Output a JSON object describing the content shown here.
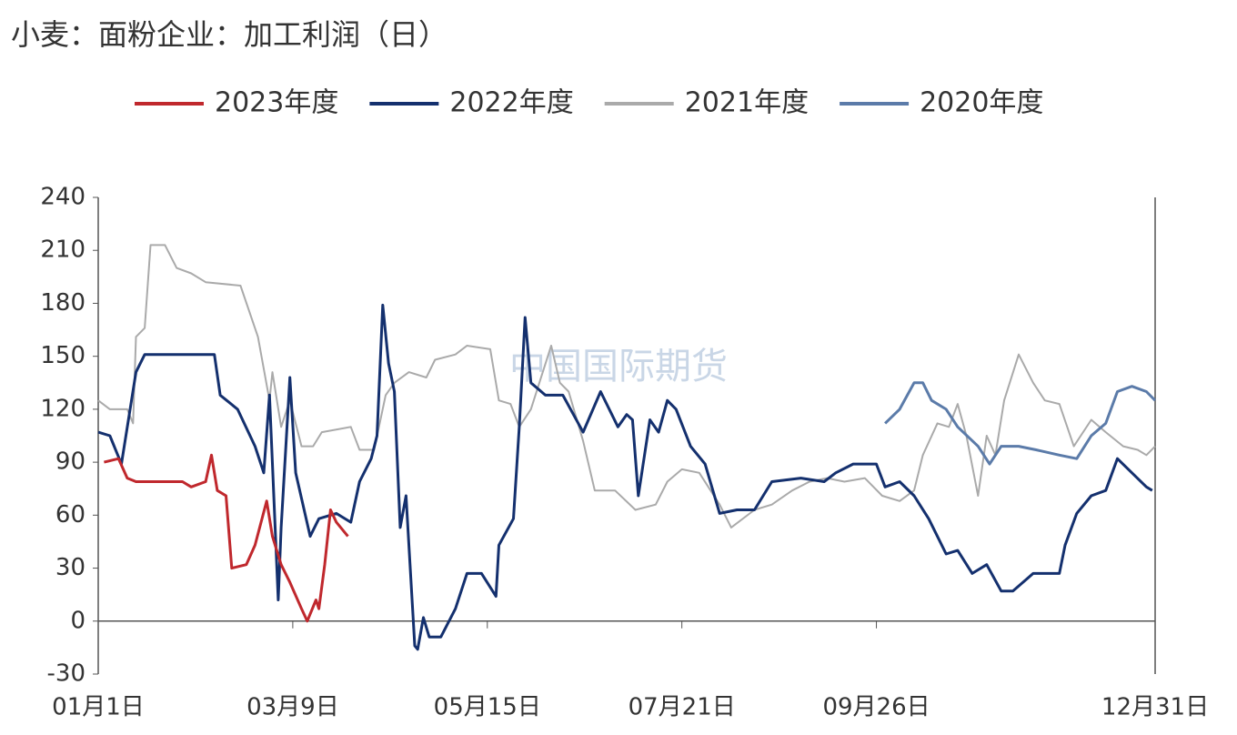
{
  "chart_data": {
    "type": "line",
    "title": "小麦：面粉企业：加工利润（日）",
    "watermark": "中国国际期货",
    "xlim": [
      0,
      364
    ],
    "xticks": [
      {
        "value": 0,
        "label": "01月1日"
      },
      {
        "value": 67,
        "label": "03月9日"
      },
      {
        "value": 134,
        "label": "05月15日"
      },
      {
        "value": 201,
        "label": "07月21日"
      },
      {
        "value": 268,
        "label": "09月26日"
      },
      {
        "value": 364,
        "label": "12月31日"
      }
    ],
    "ylim": [
      -30,
      240
    ],
    "yticks": [
      -30,
      0,
      30,
      60,
      90,
      120,
      150,
      180,
      210,
      240
    ],
    "grid": false,
    "legend": "top",
    "series": [
      {
        "name": "2023年度",
        "color": "#c0282d",
        "x": [
          2,
          7,
          10,
          13,
          29,
          32,
          37,
          39,
          41,
          44,
          46,
          51,
          54,
          58,
          60,
          63,
          66,
          70,
          72,
          75,
          76,
          78,
          80,
          82,
          86
        ],
        "values": [
          90,
          92,
          81,
          79,
          79,
          76,
          79,
          94,
          74,
          71,
          30,
          32,
          43,
          68,
          48,
          32,
          22,
          7,
          0,
          12,
          7,
          32,
          63,
          56,
          48
        ]
      },
      {
        "name": "2022年度",
        "color": "#14306e",
        "x": [
          0,
          4,
          8,
          13,
          16,
          40,
          42,
          48,
          54,
          57,
          59,
          62,
          63,
          66,
          68,
          73,
          76,
          82,
          87,
          90,
          94,
          96,
          98,
          100,
          102,
          104,
          106,
          109,
          110,
          112,
          114,
          118,
          123,
          127,
          132,
          137,
          138,
          143,
          145,
          147,
          149,
          154,
          160,
          167,
          173,
          179,
          182,
          184,
          186,
          190,
          193,
          196,
          199,
          204,
          209,
          214,
          220,
          226,
          232,
          242,
          250,
          254,
          260,
          268,
          271,
          276,
          281,
          286,
          289,
          292,
          296,
          301,
          306,
          311,
          315,
          322,
          331,
          333,
          337,
          342,
          347,
          351,
          356,
          361,
          363
        ],
        "values": [
          107,
          105,
          89,
          141,
          151,
          151,
          128,
          120,
          99,
          84,
          128,
          12,
          53,
          138,
          84,
          48,
          58,
          61,
          56,
          79,
          92,
          105,
          179,
          146,
          130,
          53,
          71,
          -14,
          -16,
          2,
          -9,
          -9,
          7,
          27,
          27,
          14,
          43,
          58,
          110,
          172,
          135,
          128,
          128,
          107,
          130,
          110,
          117,
          114,
          71,
          114,
          107,
          125,
          120,
          99,
          89,
          61,
          63,
          63,
          79,
          81,
          79,
          84,
          89,
          89,
          76,
          79,
          71,
          58,
          48,
          38,
          40,
          27,
          32,
          17,
          17,
          27,
          27,
          43,
          61,
          71,
          74,
          92,
          84,
          76,
          74
        ]
      },
      {
        "name": "2021年度",
        "color": "#aaaaaa",
        "x": [
          0,
          4,
          10,
          12,
          13,
          16,
          18,
          23,
          27,
          32,
          37,
          49,
          55,
          59,
          60,
          63,
          66,
          70,
          74,
          77,
          87,
          90,
          95,
          99,
          102,
          107,
          113,
          116,
          123,
          127,
          135,
          138,
          142,
          145,
          149,
          156,
          159,
          162,
          167,
          171,
          178,
          185,
          192,
          196,
          201,
          207,
          214,
          218,
          226,
          232,
          239,
          245,
          251,
          257,
          264,
          270,
          276,
          281,
          284,
          289,
          293,
          296,
          299,
          303,
          306,
          309,
          312,
          317,
          322,
          326,
          331,
          336,
          342,
          347,
          353,
          358,
          361,
          364
        ],
        "values": [
          125,
          120,
          120,
          112,
          161,
          166,
          213,
          213,
          200,
          197,
          192,
          190,
          161,
          125,
          141,
          110,
          125,
          99,
          99,
          107,
          110,
          97,
          97,
          128,
          135,
          141,
          138,
          148,
          151,
          156,
          154,
          125,
          123,
          110,
          120,
          156,
          135,
          130,
          102,
          74,
          74,
          63,
          66,
          79,
          86,
          84,
          66,
          53,
          63,
          66,
          74,
          79,
          81,
          79,
          81,
          71,
          68,
          74,
          94,
          112,
          110,
          123,
          105,
          71,
          105,
          94,
          125,
          151,
          135,
          125,
          123,
          99,
          114,
          107,
          99,
          97,
          94,
          99
        ]
      },
      {
        "name": "2020年度",
        "color": "#5b7ba9",
        "x": [
          271,
          276,
          281,
          284,
          287,
          292,
          296,
          303,
          307,
          311,
          317,
          323,
          331,
          337,
          342,
          347,
          351,
          356,
          361,
          364
        ],
        "values": [
          112,
          120,
          135,
          135,
          125,
          120,
          110,
          99,
          89,
          99,
          99,
          97,
          94,
          92,
          105,
          112,
          130,
          133,
          130,
          125
        ]
      }
    ]
  }
}
